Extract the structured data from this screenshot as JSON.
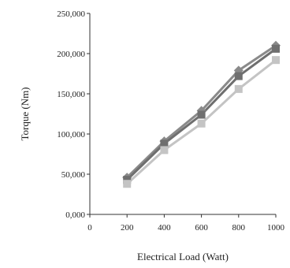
{
  "chart_data": {
    "type": "line",
    "title": "",
    "xlabel": "Electrical Load (Watt)",
    "ylabel": "Torque (Nm)",
    "x": [
      200,
      400,
      600,
      800,
      1000
    ],
    "xlim": [
      0,
      1000
    ],
    "ylim": [
      0,
      250000
    ],
    "x_ticks": [
      "0",
      "200",
      "400",
      "600",
      "800",
      "1000"
    ],
    "y_ticks": [
      "0,000",
      "50,000",
      "100,000",
      "150,000",
      "200,000",
      "250,000"
    ],
    "grid": false,
    "legend": "none",
    "series": [
      {
        "values": [
          46000,
          91000,
          129000,
          179000,
          210000
        ],
        "color": "#8a8a8a",
        "marker": "diamond"
      },
      {
        "values": [
          43000,
          88000,
          124000,
          172000,
          206000
        ],
        "color": "#6f6f6f",
        "marker": "square"
      },
      {
        "values": [
          38000,
          80000,
          113000,
          156000,
          192000
        ],
        "color": "#c4c4c4",
        "marker": "square"
      }
    ]
  }
}
